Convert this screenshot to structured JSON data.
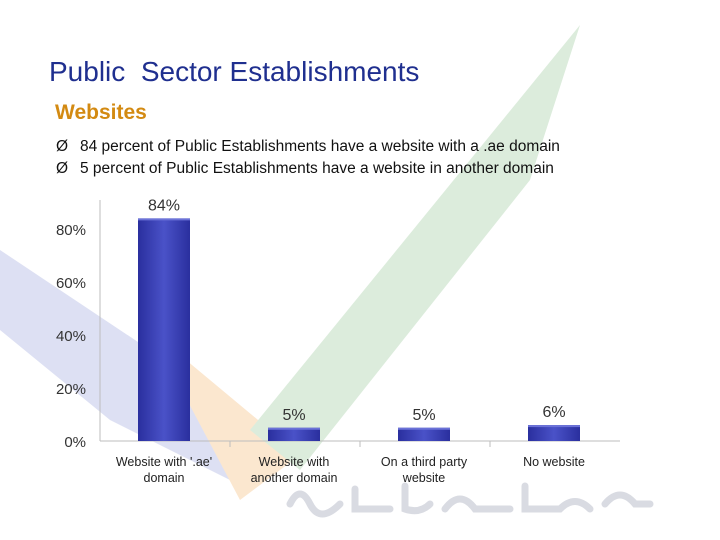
{
  "slide": {
    "title": "Public  Sector Establishments",
    "subtitle": "Websites",
    "bullets": [
      "84 percent of Public Establishments have a website with a .ae domain",
      "5 percent of Public Establishments have a website in another domain"
    ],
    "bullet_marker": "Ø"
  },
  "colors": {
    "title": "#1f2f8f",
    "subtitle": "#d38a12",
    "bar": "#2a2f9e",
    "bar_top": "#4a52c8"
  },
  "chart_data": {
    "type": "bar",
    "categories": [
      [
        "Website with '.ae'",
        "domain"
      ],
      [
        "Website with",
        "another domain"
      ],
      [
        "On a third party",
        "website"
      ],
      [
        "No website"
      ]
    ],
    "values": [
      84,
      5,
      5,
      6
    ],
    "value_labels": [
      "84%",
      "5%",
      "5%",
      "6%"
    ],
    "y_ticks": [
      "0%",
      "20%",
      "40%",
      "60%",
      "80%"
    ],
    "ylim": [
      0,
      90
    ],
    "grid": false,
    "legend": "none"
  }
}
